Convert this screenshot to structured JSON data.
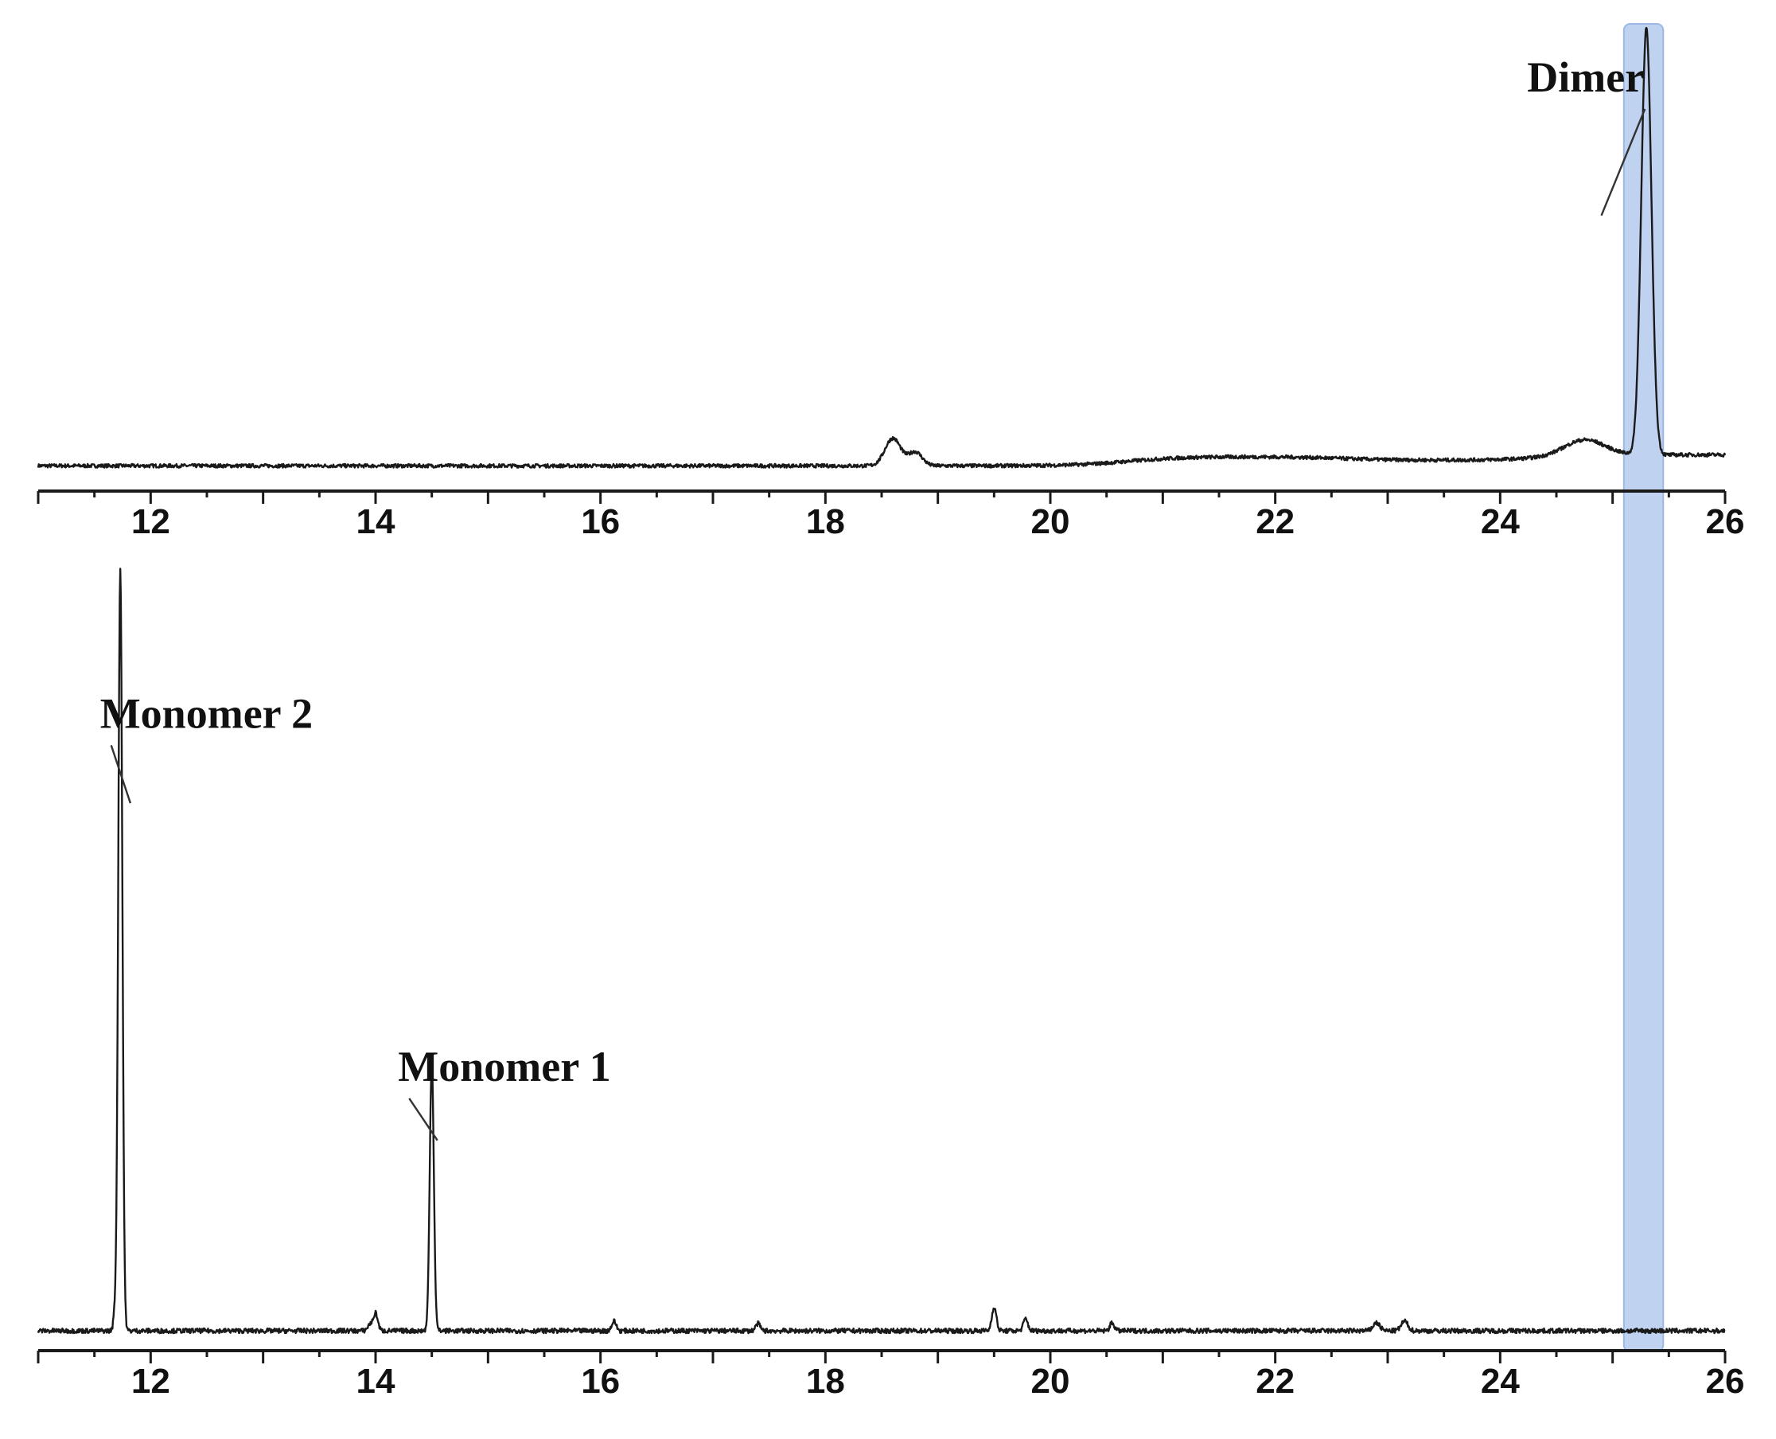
{
  "chart_data": [
    {
      "type": "line",
      "title": "",
      "xlabel": "",
      "ylabel": "",
      "xlim": [
        11,
        26
      ],
      "ylim": [
        0,
        1
      ],
      "xticks": [
        "12",
        "14",
        "16",
        "18",
        "20",
        "22",
        "24",
        "26"
      ],
      "grid": false,
      "baseline": 0.055,
      "noise": 0.004,
      "peaks": [
        {
          "x": 18.6,
          "height": 0.06,
          "width": 0.07
        },
        {
          "x": 18.8,
          "height": 0.03,
          "width": 0.06
        },
        {
          "x": 24.75,
          "height": 0.035,
          "width": 0.18
        },
        {
          "x": 25.3,
          "height": 0.93,
          "width": 0.045
        }
      ],
      "shifts": [
        {
          "x": 20.7,
          "delta": 0.02
        },
        {
          "x": 22.6,
          "delta": -0.008
        },
        {
          "x": 24.4,
          "delta": 0.012
        }
      ],
      "annotations": [
        {
          "text": "Dimer",
          "x": 24.24,
          "y": 0.87,
          "line_to": {
            "x": 24.9,
            "y": 0.6
          }
        }
      ],
      "highlight": {
        "x_from": 25.1,
        "x_to": 25.45,
        "color": "#a9c4ec"
      }
    },
    {
      "type": "line",
      "title": "",
      "xlabel": "",
      "ylabel": "",
      "xlim": [
        11,
        26
      ],
      "ylim": [
        0,
        1
      ],
      "xticks": [
        "12",
        "14",
        "16",
        "18",
        "20",
        "22",
        "24",
        "26"
      ],
      "grid": false,
      "baseline": 0.025,
      "noise": 0.003,
      "peaks": [
        {
          "x": 11.68,
          "height": 0.02,
          "width": 0.012
        },
        {
          "x": 11.73,
          "height": 0.96,
          "width": 0.018
        },
        {
          "x": 13.95,
          "height": 0.008,
          "width": 0.02
        },
        {
          "x": 14.0,
          "height": 0.022,
          "width": 0.02
        },
        {
          "x": 14.5,
          "height": 0.34,
          "width": 0.018
        },
        {
          "x": 16.12,
          "height": 0.012,
          "width": 0.02
        },
        {
          "x": 17.4,
          "height": 0.009,
          "width": 0.02
        },
        {
          "x": 19.5,
          "height": 0.03,
          "width": 0.02
        },
        {
          "x": 19.78,
          "height": 0.015,
          "width": 0.02
        },
        {
          "x": 20.55,
          "height": 0.01,
          "width": 0.02
        },
        {
          "x": 22.9,
          "height": 0.01,
          "width": 0.03
        },
        {
          "x": 23.15,
          "height": 0.012,
          "width": 0.03
        }
      ],
      "shifts": [],
      "annotations": [
        {
          "text": "Monomer 2",
          "x": 11.55,
          "y": 0.785,
          "line_to": {
            "x": 11.82,
            "y": 0.69
          }
        },
        {
          "text": "Monomer 1",
          "x": 14.2,
          "y": 0.34,
          "line_to": {
            "x": 14.55,
            "y": 0.265
          }
        }
      ]
    }
  ]
}
